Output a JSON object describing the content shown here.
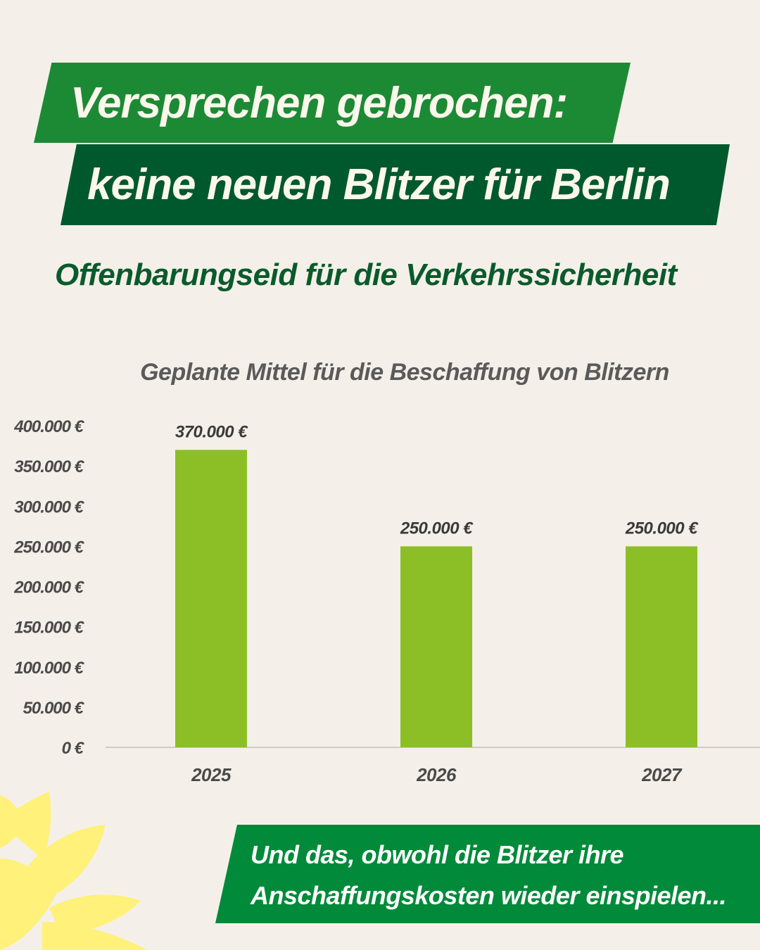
{
  "headline": {
    "line1": "Versprechen gebrochen:",
    "line2": "keine neuen Blitzer für Berlin"
  },
  "subtitle": "Offenbarungseid für die Verkehrssicherheit",
  "footer": {
    "line1": "Und das, obwohl die Blitzer ihre",
    "line2": "Anschaffungskosten wieder einspielen..."
  },
  "colors": {
    "banner_light": "#1c8a34",
    "banner_dark": "#00592c",
    "bar": "#8cbf26",
    "footer": "#008a39",
    "sunflower": "#fff17a"
  },
  "chart_data": {
    "type": "bar",
    "title": "Geplante Mittel für die Beschaffung von Blitzern",
    "categories": [
      "2025",
      "2026",
      "2027"
    ],
    "values": [
      370000,
      250000,
      250000
    ],
    "data_labels": [
      "370.000 €",
      "250.000 €",
      "250.000 €"
    ],
    "yticks": [
      0,
      50000,
      100000,
      150000,
      200000,
      250000,
      300000,
      350000,
      400000
    ],
    "ytick_labels": [
      "0 €",
      "50.000 €",
      "100.000 €",
      "150.000 €",
      "200.000 €",
      "250.000 €",
      "300.000 €",
      "350.000 €",
      "400.000 €"
    ],
    "ylim": [
      0,
      400000
    ],
    "grid": false,
    "legend": "none"
  }
}
